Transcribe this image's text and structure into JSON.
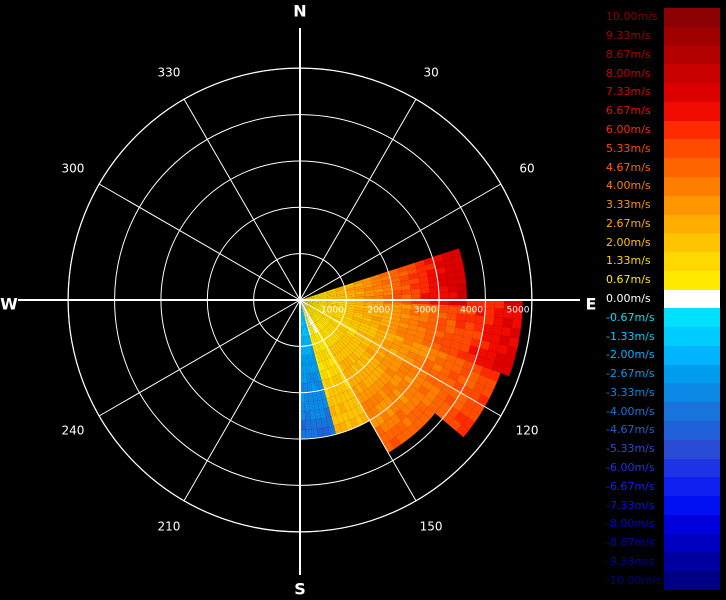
{
  "chart_data": {
    "type": "polar-heatmap",
    "compass": [
      "N",
      "E",
      "S",
      "W"
    ],
    "azimuth_labels": [
      "30",
      "60",
      "120",
      "150",
      "210",
      "240",
      "300",
      "330"
    ],
    "azimuth_ticks": [
      30,
      60,
      120,
      150,
      210,
      240,
      300,
      330
    ],
    "range_labels": [
      "1000",
      "2000",
      "3000",
      "4000",
      "5000"
    ],
    "range_ticks": [
      1000,
      2000,
      3000,
      4000,
      5000
    ],
    "range_max": 5000,
    "legend": {
      "labels": [
        "10.00m/s",
        "9.33m/s",
        "8.67m/s",
        "8.00m/s",
        "7.33m/s",
        "6.67m/s",
        "6.00m/s",
        "5.33m/s",
        "4.67m/s",
        "4.00m/s",
        "3.33m/s",
        "2.67m/s",
        "2.00m/s",
        "1.33m/s",
        "0.67m/s",
        "0.00m/s",
        "-0.67m/s",
        "-1.33m/s",
        "-2.00m/s",
        "-2.67m/s",
        "-3.33m/s",
        "-4.00m/s",
        "-4.67m/s",
        "-5.33m/s",
        "-6.00m/s",
        "-6.67m/s",
        "-7.33m/s",
        "-8.00m/s",
        "-8.67m/s",
        "-9.33m/s",
        "-10.00m/s"
      ],
      "values": [
        10,
        9.33,
        8.67,
        8,
        7.33,
        6.67,
        6,
        5.33,
        4.67,
        4,
        3.33,
        2.67,
        2,
        1.33,
        0.67,
        0,
        -0.67,
        -1.33,
        -2,
        -2.67,
        -3.33,
        -4,
        -4.67,
        -5.33,
        -6,
        -6.67,
        -7.33,
        -8,
        -8.67,
        -9.33,
        -10
      ],
      "colors": [
        "#8b0000",
        "#a00000",
        "#b40000",
        "#c80000",
        "#dc0000",
        "#f00a00",
        "#ff2a00",
        "#ff4a00",
        "#ff6400",
        "#ff7e00",
        "#ff9600",
        "#ffae00",
        "#ffc400",
        "#ffd800",
        "#ffea00",
        "#ffffff",
        "#00e0ff",
        "#00ccff",
        "#00b4ff",
        "#009cf0",
        "#0c88e6",
        "#1874dc",
        "#2060d8",
        "#2a4cd4",
        "#1e32e6",
        "#1020f0",
        "#0010f0",
        "#0000dc",
        "#0000c0",
        "#0000a0",
        "#000084"
      ]
    },
    "sectors": [
      {
        "az": [
          90,
          110
        ],
        "r": [
          0,
          4800
        ],
        "v": [
          0.5,
          7.5
        ]
      },
      {
        "az": [
          110,
          130
        ],
        "r": [
          0,
          4600
        ],
        "v": [
          0.5,
          6.0
        ]
      },
      {
        "az": [
          130,
          150
        ],
        "r": [
          0,
          3800
        ],
        "v": [
          0.3,
          5.0
        ]
      },
      {
        "az": [
          150,
          165
        ],
        "r": [
          0,
          3000
        ],
        "v": [
          0.1,
          2.5
        ]
      },
      {
        "az": [
          165,
          180
        ],
        "r": [
          0,
          3000
        ],
        "v": [
          -1.0,
          -4.5
        ]
      },
      {
        "az": [
          72,
          90
        ],
        "r": [
          0,
          3500
        ],
        "v": [
          0.5,
          8.0
        ]
      }
    ]
  }
}
